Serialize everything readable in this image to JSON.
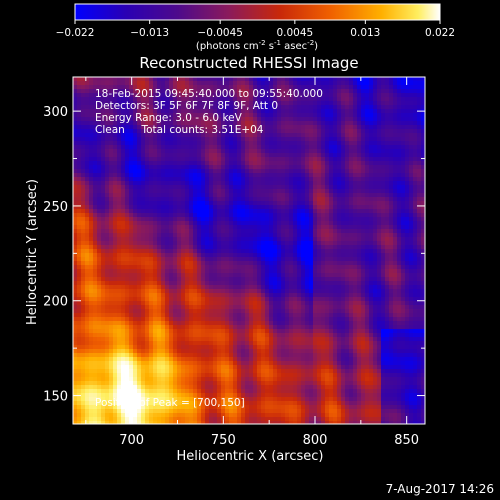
{
  "colorbar": {
    "ticks": [
      "−0.022",
      "−0.013",
      "−0.0045",
      "0.0045",
      "0.013",
      "0.022"
    ],
    "tick_values": [
      -0.022,
      -0.013,
      -0.0045,
      0.0045,
      0.013,
      0.022
    ],
    "units_line1": "(photons cm",
    "units_sup1": "-2",
    "units_line2": " s",
    "units_sup2": "-1",
    "units_line3": " asec",
    "units_sup3": "-2",
    "units_end": ")",
    "colors": [
      "#0000ff",
      "#2a00b4",
      "#4d0a8c",
      "#8a1a5c",
      "#c8280a",
      "#f06000",
      "#ffb000",
      "#ffee60",
      "#ffffff"
    ]
  },
  "chart_data": {
    "type": "heatmap",
    "title": "Reconstructed RHESSI Image",
    "xlabel": "Heliocentric X (arcsec)",
    "ylabel": "Heliocentric Y (arcsec)",
    "xlim": [
      668,
      860
    ],
    "ylim": [
      135,
      318
    ],
    "x_ticks": [
      700,
      750,
      800,
      850
    ],
    "y_ticks": [
      150,
      200,
      250,
      300
    ],
    "peak": [
      700,
      150
    ],
    "annotations": [
      "18-Feb-2015 09:45:40.000 to 09:55:40.000",
      "Detectors: 3F 5F 6F 7F 8F 9F, Att 0",
      "Energy Range: 3.0 - 6.0 keV",
      "Clean     Total counts: 3.51E+04"
    ],
    "peak_label": "Position of Peak = [700,150]"
  },
  "footer": {
    "date": "7-Aug-2017 14:26"
  }
}
